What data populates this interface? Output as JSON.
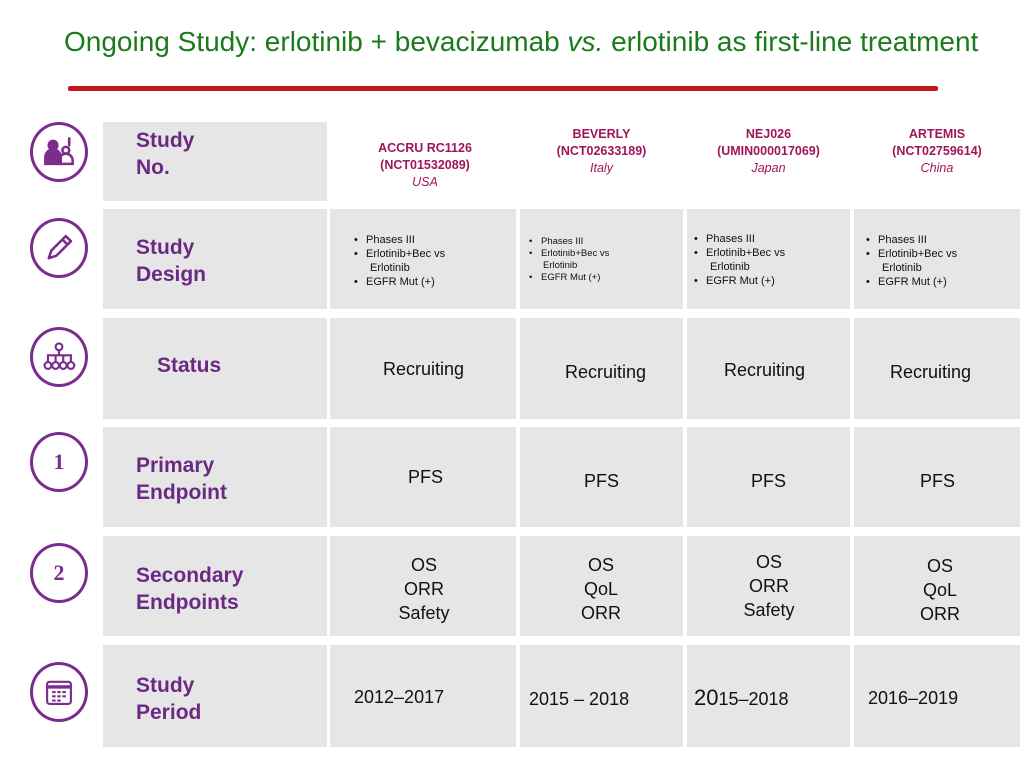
{
  "title": {
    "part1": "Ongoing Study: erlotinib + bevacizumab ",
    "vs": "vs.",
    "part2": " erlotinib as first-line treatment"
  },
  "row_labels": {
    "study_no_1": "Study",
    "study_no_2": "No.",
    "design_1": "Study",
    "design_2": "Design",
    "status": "Status",
    "primary_1": "Primary",
    "primary_2": "Endpoint",
    "secondary_1": "Secondary",
    "secondary_2": "Endpoints",
    "period_1": "Study",
    "period_2": "Period"
  },
  "icons": {
    "row1": "doctor-patient-icon",
    "row2": "pencil-icon",
    "row3": "network-hierarchy-icon",
    "row4": "number-one-icon",
    "row5": "number-two-icon",
    "row6": "calendar-icon",
    "num1": "1",
    "num2": "2"
  },
  "colors": {
    "title": "#1b7a1b",
    "rule": "#c4161c",
    "accent": "#7b2d8e",
    "header": "#a0155a",
    "cell": "#e6e6e6"
  },
  "studies": [
    {
      "name": "ACCRU RC1126",
      "id": "(NCT01532089)",
      "country": "USA",
      "design": [
        "Phases III",
        "Erlotinib+Bec vs",
        "Erlotinib",
        "EGFR Mut (+)"
      ],
      "status": "Recruiting",
      "primary": "PFS",
      "secondary": [
        "OS",
        "ORR",
        "Safety"
      ],
      "period": "2012–2017"
    },
    {
      "name": "BEVERLY",
      "id": "(NCT02633189)",
      "country": "Italy",
      "design": [
        "Phases III",
        "Erlotinib+Bec vs",
        "Erlotinib",
        "EGFR Mut (+)"
      ],
      "status": "Recruiting",
      "primary": "PFS",
      "secondary": [
        "OS",
        "QoL",
        "ORR"
      ],
      "period": "2015 – 2018"
    },
    {
      "name": "NEJ026",
      "id": "(UMIN000017069)",
      "country": "Japan",
      "design": [
        "Phases III",
        "Erlotinib+Bec vs",
        "Erlotinib",
        "EGFR Mut (+)"
      ],
      "status": "Recruiting",
      "primary": "PFS",
      "secondary": [
        "OS",
        "ORR",
        "Safety"
      ],
      "period_big": "20",
      "period_rest": "15–2018"
    },
    {
      "name": "ARTEMIS",
      "id": "(NCT02759614)",
      "country": "China",
      "design": [
        "Phases III",
        "Erlotinib+Bec vs",
        "Erlotinib",
        "EGFR Mut (+)"
      ],
      "status": "Recruiting",
      "primary": "PFS",
      "secondary": [
        "OS",
        "QoL",
        "ORR"
      ],
      "period": "2016–2019"
    }
  ]
}
